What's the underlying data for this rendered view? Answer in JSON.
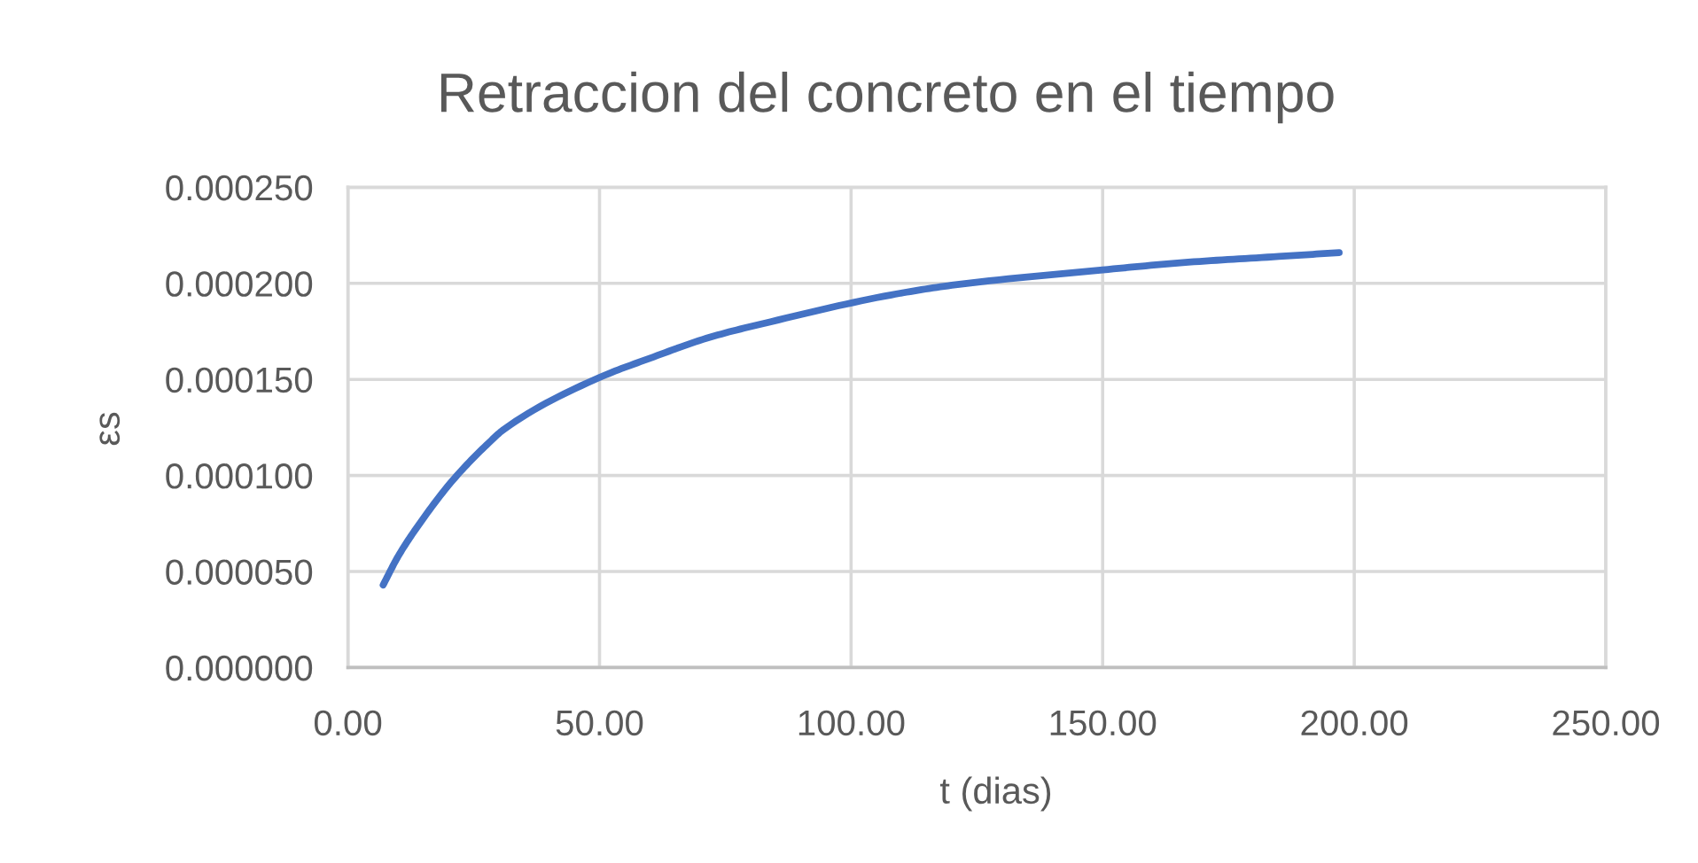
{
  "chart_data": {
    "type": "line",
    "title": "Retraccion del concreto en el tiempo",
    "xlabel": "t (dias)",
    "ylabel": "εs",
    "x": [
      7,
      10,
      14,
      21,
      28,
      31,
      50,
      60,
      72,
      84,
      108,
      120,
      150,
      167,
      185,
      197
    ],
    "series": [
      {
        "color": "#4472c4",
        "values": [
          4.3e-05,
          5.8e-05,
          7.4e-05,
          9.8e-05,
          0.000117,
          0.000124,
          0.000151,
          0.000161,
          0.000172,
          0.00018,
          0.000194,
          0.000199,
          0.000207,
          0.000211,
          0.000214,
          0.000216
        ]
      }
    ],
    "xlim": [
      0,
      250
    ],
    "xticks": [
      {
        "value": 0,
        "label": "0.00"
      },
      {
        "value": 50,
        "label": "50.00"
      },
      {
        "value": 100,
        "label": "100.00"
      },
      {
        "value": 150,
        "label": "150.00"
      },
      {
        "value": 200,
        "label": "200.00"
      },
      {
        "value": 250,
        "label": "250.00"
      }
    ],
    "ylim": [
      0,
      0.00025
    ],
    "yticks": [
      {
        "value": 0,
        "label": "0.000000"
      },
      {
        "value": 5e-05,
        "label": "0.000050"
      },
      {
        "value": 0.0001,
        "label": "0.000100"
      },
      {
        "value": 0.00015,
        "label": "0.000150"
      },
      {
        "value": 0.0002,
        "label": "0.000200"
      },
      {
        "value": 0.00025,
        "label": "0.000250"
      }
    ],
    "grid": true
  }
}
